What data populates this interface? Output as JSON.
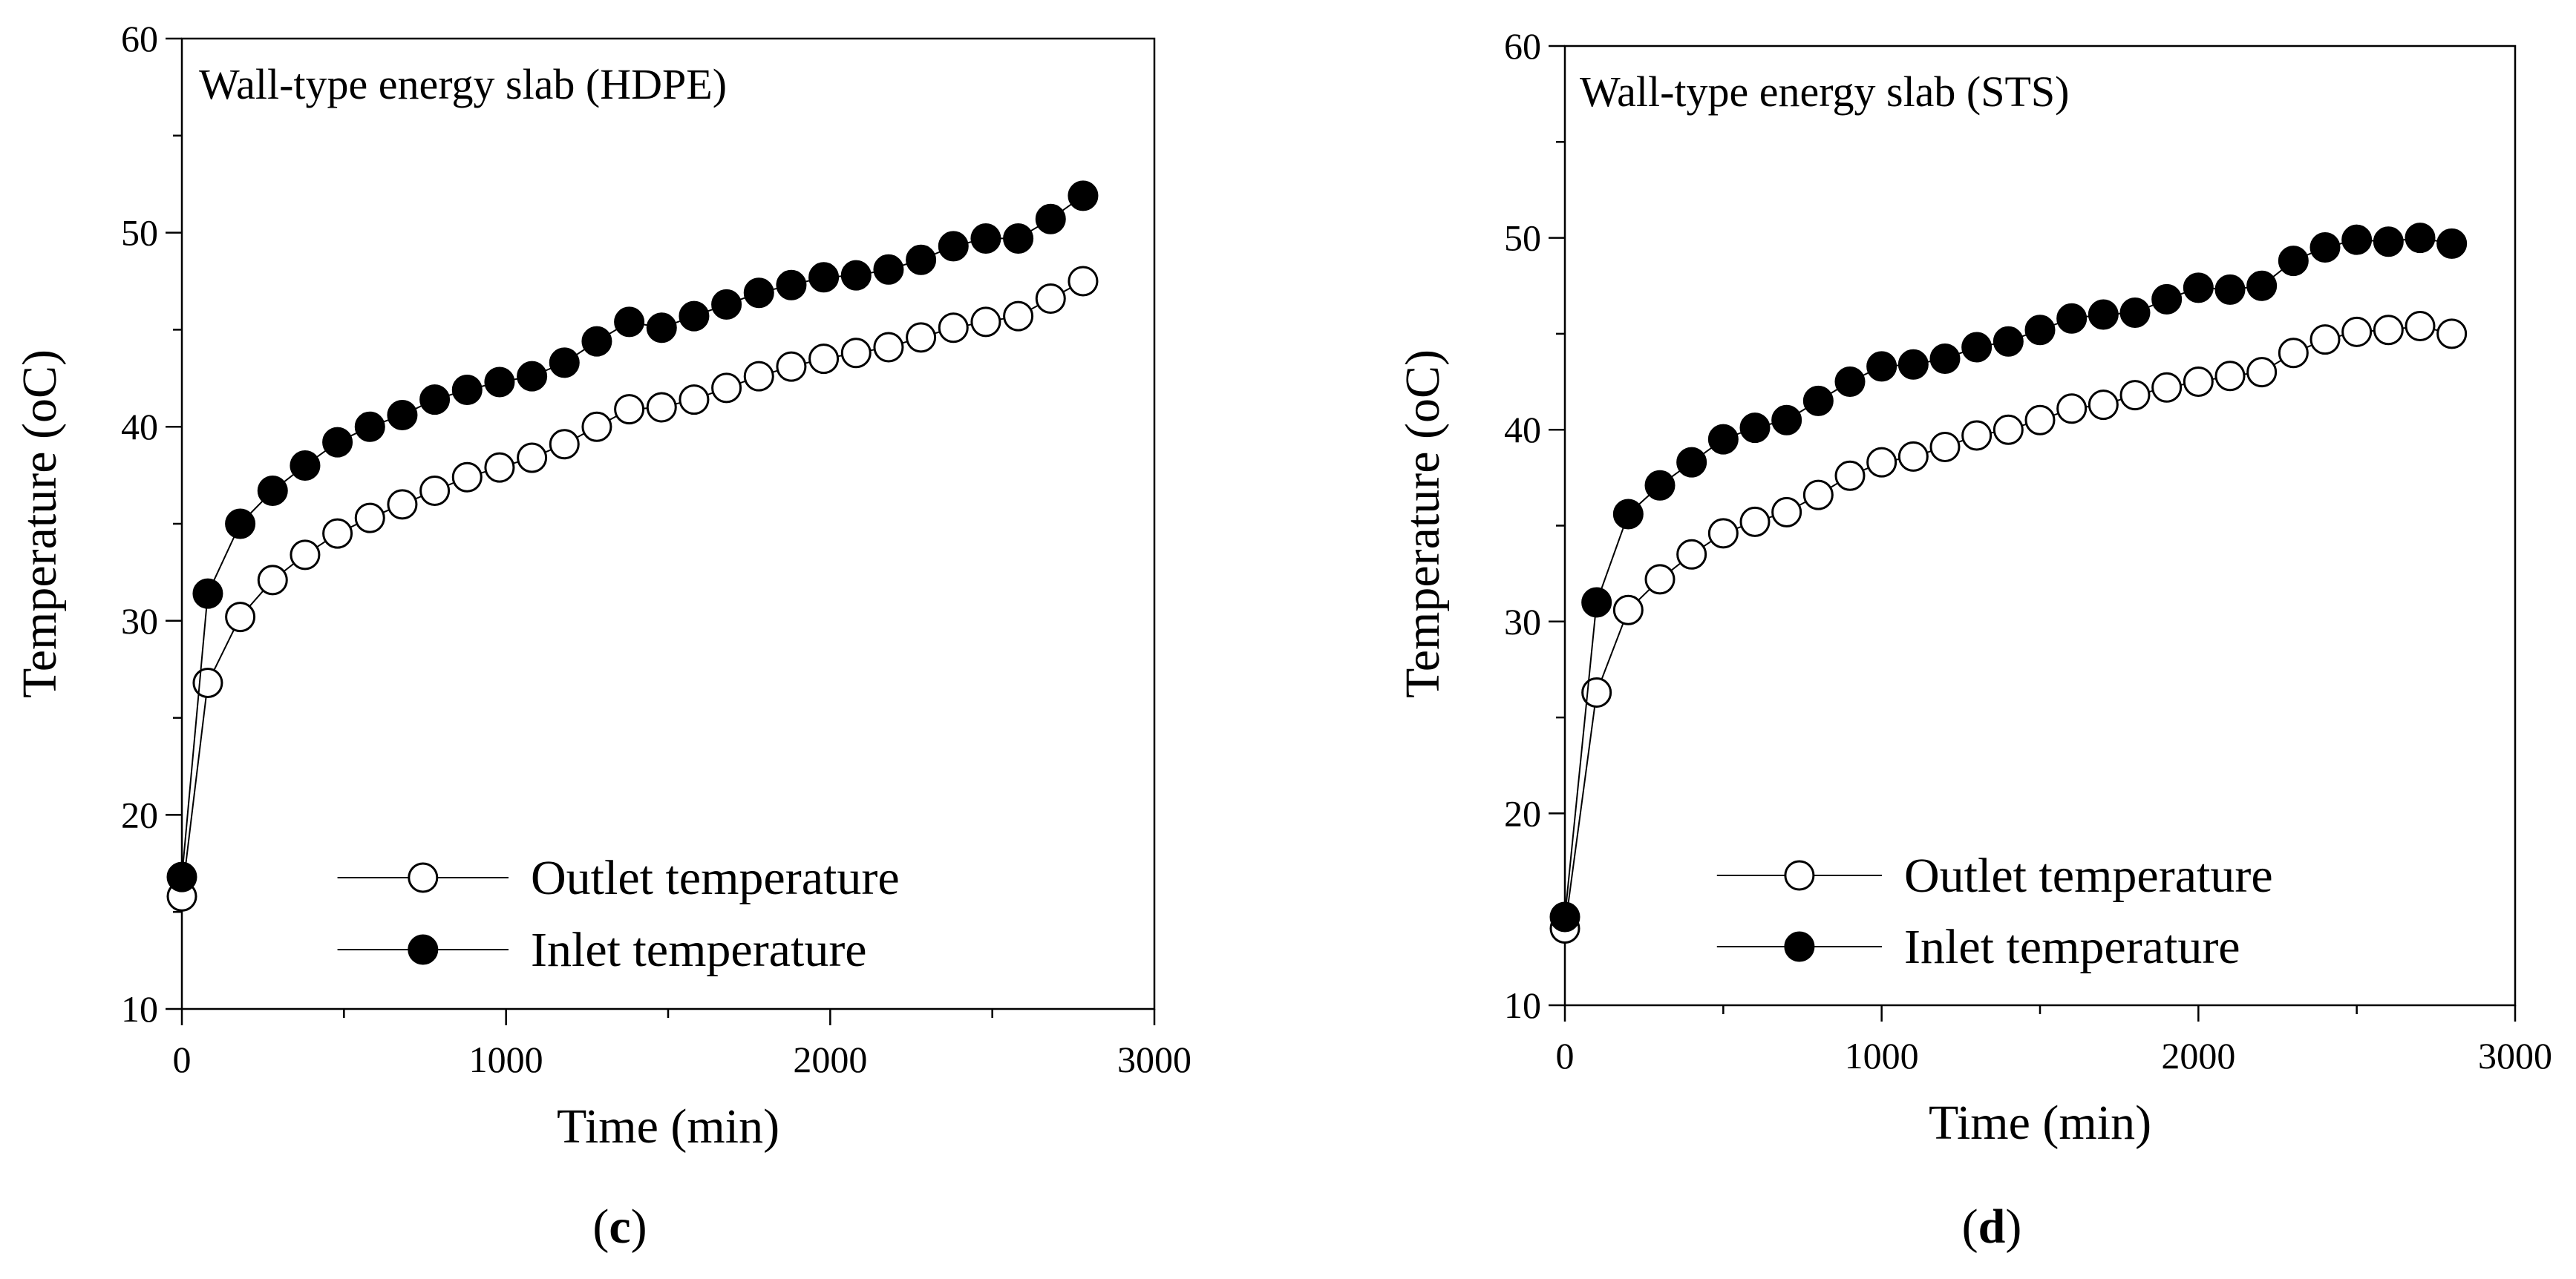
{
  "chart_data": [
    {
      "type": "scatter",
      "title": "Wall-type energy slab (HDPE)",
      "caption": {
        "open": "(",
        "letter": "c",
        "close": ")"
      },
      "xlabel": "Time (min)",
      "ylabel": "Temperature (oC)",
      "xlim": [
        0,
        3000
      ],
      "ylim": [
        10,
        60
      ],
      "xticks": [
        0,
        1000,
        2000,
        3000
      ],
      "yticks": [
        10,
        20,
        30,
        40,
        50,
        60
      ],
      "xtick_labels": [
        "0",
        "1000",
        "2000",
        "3000"
      ],
      "ytick_labels": [
        "10",
        "20",
        "30",
        "40",
        "50",
        "60"
      ],
      "grid": false,
      "legend_position": "bottom-right",
      "legend": [
        "Outlet temperature",
        "Inlet temperature"
      ],
      "series": [
        {
          "name": "Outlet temperature",
          "marker": "open-circle",
          "x": [
            0,
            80,
            180,
            280,
            380,
            480,
            580,
            680,
            780,
            880,
            980,
            1080,
            1180,
            1280,
            1380,
            1480,
            1580,
            1680,
            1780,
            1880,
            1980,
            2080,
            2180,
            2280,
            2380,
            2480,
            2580,
            2680,
            2780
          ],
          "y": [
            15.8,
            26.8,
            30.2,
            32.1,
            33.4,
            34.5,
            35.3,
            36.0,
            36.7,
            37.4,
            37.9,
            38.4,
            39.1,
            40.0,
            40.9,
            41.0,
            41.4,
            42.0,
            42.6,
            43.1,
            43.5,
            43.8,
            44.1,
            44.6,
            45.1,
            45.4,
            45.7,
            46.6,
            47.5
          ]
        },
        {
          "name": "Inlet temperature",
          "marker": "filled-circle",
          "x": [
            0,
            80,
            180,
            280,
            380,
            480,
            580,
            680,
            780,
            880,
            980,
            1080,
            1180,
            1280,
            1380,
            1480,
            1580,
            1680,
            1780,
            1880,
            1980,
            2080,
            2180,
            2280,
            2380,
            2480,
            2580,
            2680,
            2780
          ],
          "y": [
            16.8,
            31.4,
            35.0,
            36.7,
            38.0,
            39.2,
            40.0,
            40.6,
            41.4,
            41.9,
            42.3,
            42.6,
            43.3,
            44.4,
            45.4,
            45.1,
            45.7,
            46.3,
            46.9,
            47.3,
            47.7,
            47.8,
            48.1,
            48.6,
            49.3,
            49.7,
            49.7,
            50.7,
            51.9
          ]
        }
      ]
    },
    {
      "type": "scatter",
      "title": "Wall-type energy slab (STS)",
      "caption": {
        "open": "(",
        "letter": "d",
        "close": ")"
      },
      "xlabel": "Time (min)",
      "ylabel": "Temperature (oC)",
      "xlim": [
        0,
        3000
      ],
      "ylim": [
        10,
        60
      ],
      "xticks": [
        0,
        1000,
        2000,
        3000
      ],
      "yticks": [
        10,
        20,
        30,
        40,
        50,
        60
      ],
      "xtick_labels": [
        "0",
        "1000",
        "2000",
        "3000"
      ],
      "ytick_labels": [
        "10",
        "20",
        "30",
        "40",
        "50",
        "60"
      ],
      "grid": false,
      "legend_position": "bottom-right",
      "legend": [
        "Outlet temperature",
        "Inlet temperature"
      ],
      "series": [
        {
          "name": "Outlet temperature",
          "marker": "open-circle",
          "x": [
            0,
            100,
            200,
            300,
            400,
            500,
            600,
            700,
            800,
            900,
            1000,
            1100,
            1200,
            1300,
            1400,
            1500,
            1600,
            1700,
            1800,
            1900,
            2000,
            2100,
            2200,
            2300,
            2400,
            2500,
            2600,
            2700,
            2800
          ],
          "y": [
            14.0,
            26.3,
            30.6,
            32.2,
            33.5,
            34.6,
            35.2,
            35.7,
            36.6,
            37.6,
            38.3,
            38.6,
            39.1,
            39.7,
            40.0,
            40.5,
            41.1,
            41.3,
            41.8,
            42.2,
            42.5,
            42.8,
            43.0,
            44.0,
            44.7,
            45.1,
            45.2,
            45.4,
            45.0
          ]
        },
        {
          "name": "Inlet temperature",
          "marker": "filled-circle",
          "x": [
            0,
            100,
            200,
            300,
            400,
            500,
            600,
            700,
            800,
            900,
            1000,
            1100,
            1200,
            1300,
            1400,
            1500,
            1600,
            1700,
            1800,
            1900,
            2000,
            2100,
            2200,
            2300,
            2400,
            2500,
            2600,
            2700,
            2800
          ],
          "y": [
            14.6,
            31.0,
            35.6,
            37.1,
            38.3,
            39.5,
            40.1,
            40.5,
            41.5,
            42.5,
            43.3,
            43.4,
            43.7,
            44.3,
            44.6,
            45.2,
            45.8,
            46.0,
            46.1,
            46.8,
            47.4,
            47.3,
            47.5,
            48.8,
            49.5,
            49.9,
            49.8,
            50.0,
            49.7
          ]
        }
      ]
    }
  ]
}
